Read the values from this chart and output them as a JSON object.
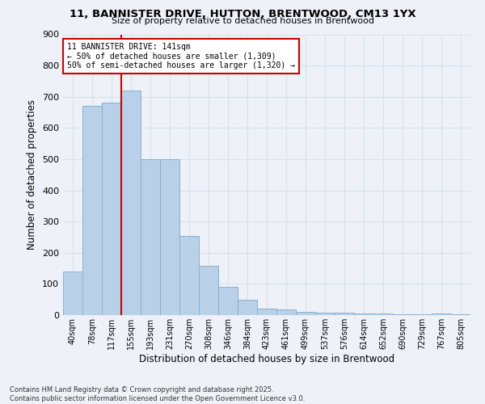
{
  "title_line1": "11, BANNISTER DRIVE, HUTTON, BRENTWOOD, CM13 1YX",
  "title_line2": "Size of property relative to detached houses in Brentwood",
  "xlabel": "Distribution of detached houses by size in Brentwood",
  "ylabel": "Number of detached properties",
  "categories": [
    "40sqm",
    "78sqm",
    "117sqm",
    "155sqm",
    "193sqm",
    "231sqm",
    "270sqm",
    "308sqm",
    "346sqm",
    "384sqm",
    "423sqm",
    "461sqm",
    "499sqm",
    "537sqm",
    "576sqm",
    "614sqm",
    "652sqm",
    "690sqm",
    "729sqm",
    "767sqm",
    "805sqm"
  ],
  "values": [
    140,
    670,
    680,
    720,
    500,
    500,
    255,
    158,
    90,
    50,
    22,
    17,
    10,
    8,
    8,
    6,
    4,
    3,
    2,
    4,
    2
  ],
  "bar_color": "#b8d0e8",
  "bar_edge_color": "#8ab0d0",
  "vline_x_index": 3,
  "vline_color": "#cc0000",
  "annotation_text": "11 BANNISTER DRIVE: 141sqm\n← 50% of detached houses are smaller (1,309)\n50% of semi-detached houses are larger (1,320) →",
  "annotation_box_color": "#ffffff",
  "annotation_box_edgecolor": "#cc0000",
  "ylim": [
    0,
    900
  ],
  "yticks": [
    0,
    100,
    200,
    300,
    400,
    500,
    600,
    700,
    800,
    900
  ],
  "bg_color": "#eef2f8",
  "grid_color": "#d8e0ec",
  "footer_line1": "Contains HM Land Registry data © Crown copyright and database right 2025.",
  "footer_line2": "Contains public sector information licensed under the Open Government Licence v3.0."
}
